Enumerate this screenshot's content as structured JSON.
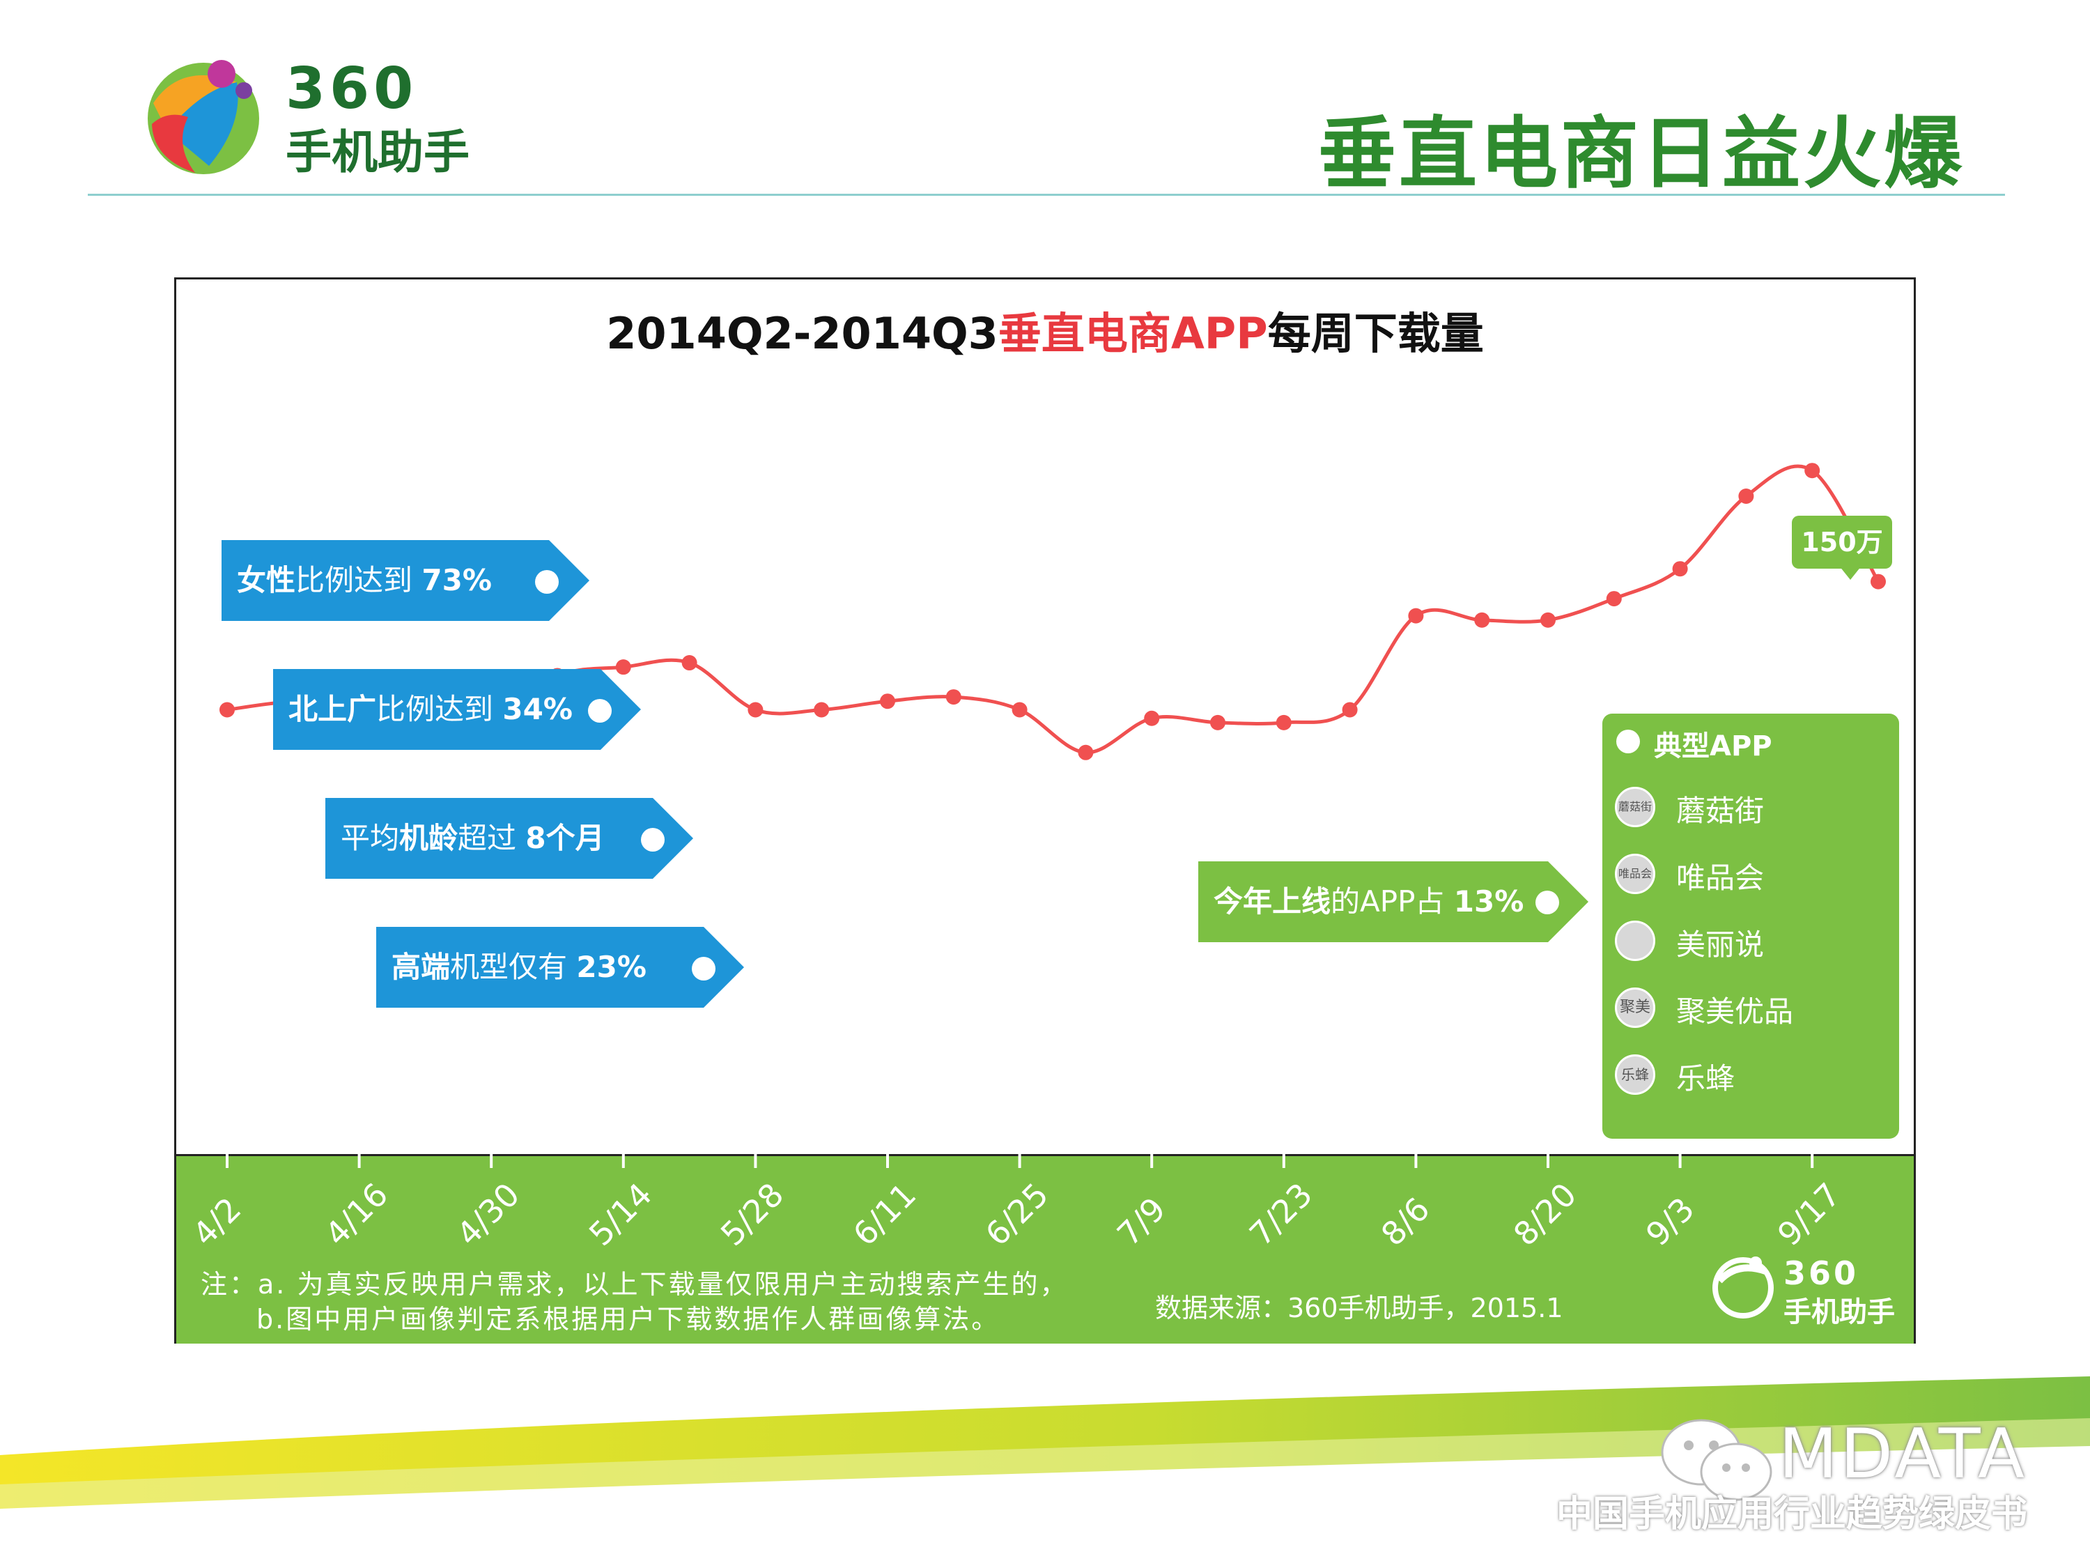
{
  "header": {
    "logo_360": "360",
    "logo_cn": "手机助手",
    "page_title": "垂直电商日益火爆"
  },
  "chart_data": {
    "type": "line",
    "title_prefix": "2014Q2-2014Q3",
    "title_highlight": "垂直电商APP",
    "title_suffix": "每周下载量",
    "x_tick_labels": [
      "4/2",
      "4/16",
      "4/30",
      "5/14",
      "5/28",
      "6/11",
      "6/25",
      "7/9",
      "7/23",
      "8/6",
      "8/20",
      "9/3",
      "9/17"
    ],
    "x": [
      "4/2",
      "4/9",
      "4/16",
      "4/23",
      "4/30",
      "5/7",
      "5/14",
      "5/21",
      "5/28",
      "6/4",
      "6/11",
      "6/18",
      "6/25",
      "7/2",
      "7/9",
      "7/16",
      "7/23",
      "7/30",
      "8/6",
      "8/13",
      "8/20",
      "8/27",
      "9/3",
      "9/10",
      "9/17",
      "9/24"
    ],
    "values": [
      52,
      53,
      53,
      50,
      51,
      56,
      57,
      57.5,
      52,
      52,
      53,
      53.5,
      52,
      47,
      51,
      50.5,
      50.5,
      52,
      63,
      62.5,
      62.5,
      65,
      68.5,
      77,
      80,
      67
    ],
    "ylim": [
      0,
      100
    ],
    "line_color": "#f05050",
    "peak_label": "150万"
  },
  "callouts_blue": [
    {
      "bold": "女性",
      "text": "比例达到 ",
      "value": "73%"
    },
    {
      "bold": "北上广",
      "text": "比例达到 ",
      "value": "34%"
    },
    {
      "bold": "",
      "text": "平均",
      "bold2": "机龄",
      "text2": "超过 ",
      "value": "8个月"
    },
    {
      "bold": "高端",
      "text": "机型仅有 ",
      "value": "23%"
    }
  ],
  "callout_green": {
    "bold": "今年上线",
    "text": "的APP占 ",
    "value": "13%"
  },
  "apps_panel": {
    "header": "典型APP",
    "apps": [
      {
        "name": "蘑菇街",
        "icon": "mogujie-icon"
      },
      {
        "name": "唯品会",
        "icon": "vip-icon"
      },
      {
        "name": "美丽说",
        "icon": "meilishuo-icon"
      },
      {
        "name": "聚美优品",
        "icon": "jumei-icon"
      },
      {
        "name": "乐蜂",
        "icon": "lefeng-icon"
      }
    ]
  },
  "notes": {
    "line1": "注：a. 为真实反映用户需求，以上下载量仅限用户主动搜索产生的，",
    "line2": "b.图中用户画像判定系根据用户下载数据作人群画像算法。",
    "source": "数据来源：360手机助手，2015.1"
  },
  "band_logo": {
    "logo_360": "360",
    "logo_cn": "手机助手"
  },
  "footer": {
    "brand": "MDATA",
    "subtitle": "中国手机应用行业趋势绿皮书"
  },
  "colors": {
    "accent_green": "#7cc043",
    "accent_blue": "#1e95d8",
    "title_red": "#e8393f",
    "dark_green": "#1f6f2e"
  }
}
